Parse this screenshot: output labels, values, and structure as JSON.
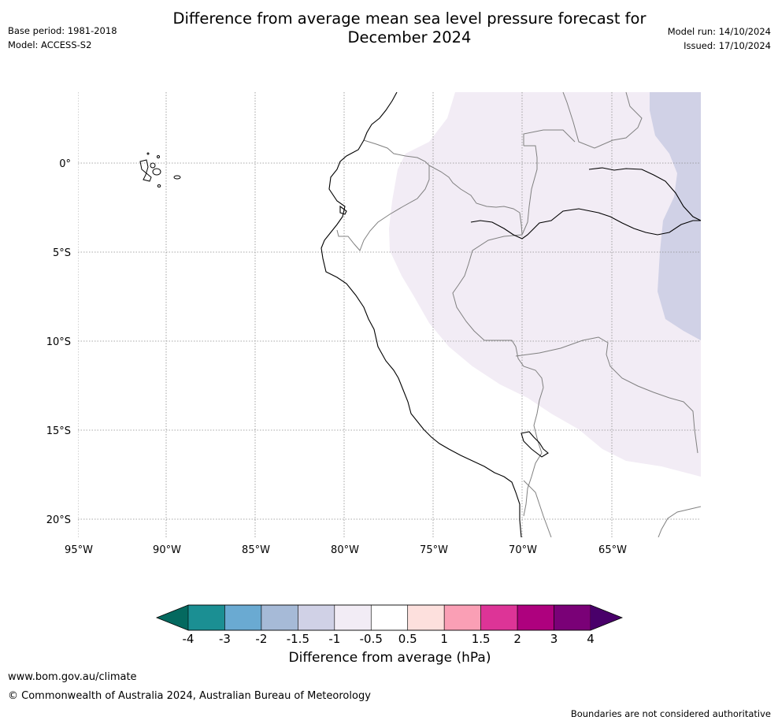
{
  "header": {
    "title_line1": "Difference from average mean sea level pressure forecast for",
    "title_line2": "December 2024",
    "base_period": "Base period: 1981-2018",
    "model": "Model: ACCESS-S2",
    "model_run": "Model run: 14/10/2024",
    "issued": "Issued: 17/10/2024"
  },
  "map": {
    "lat_labels": [
      "0°",
      "5°S",
      "10°S",
      "15°S",
      "20°S"
    ],
    "lon_labels": [
      "95°W",
      "90°W",
      "85°W",
      "80°W",
      "75°W",
      "70°W",
      "65°W"
    ],
    "fill_colors": {
      "neg_0_5_to_neg_1": "#f2ecf5",
      "neg_1_to_neg_1_5": "#d0d1e6",
      "coastline": "#000000",
      "borders": "#808080",
      "gridlines": "#8c8c8c"
    }
  },
  "colorbar": {
    "title": "Difference from average (hPa)",
    "tick_labels": [
      "-4",
      "-3",
      "-2",
      "-1.5",
      "-1",
      "-0.5",
      "0.5",
      "1",
      "1.5",
      "2",
      "3",
      "4"
    ],
    "colors": [
      "#1b8f93",
      "#6aaad2",
      "#a6bad7",
      "#d0d1e6",
      "#f2ecf5",
      "#ffffff",
      "#fde0dd",
      "#fa9fb5",
      "#dd3497",
      "#ae017e",
      "#7a0177"
    ],
    "under_color": "#04695f",
    "over_color": "#49006a"
  },
  "footer": {
    "url": "www.bom.gov.au/climate",
    "copyright": "© Commonwealth of Australia 2024, Australian Bureau of Meteorology",
    "note": "Boundaries are not considered authoritative"
  }
}
